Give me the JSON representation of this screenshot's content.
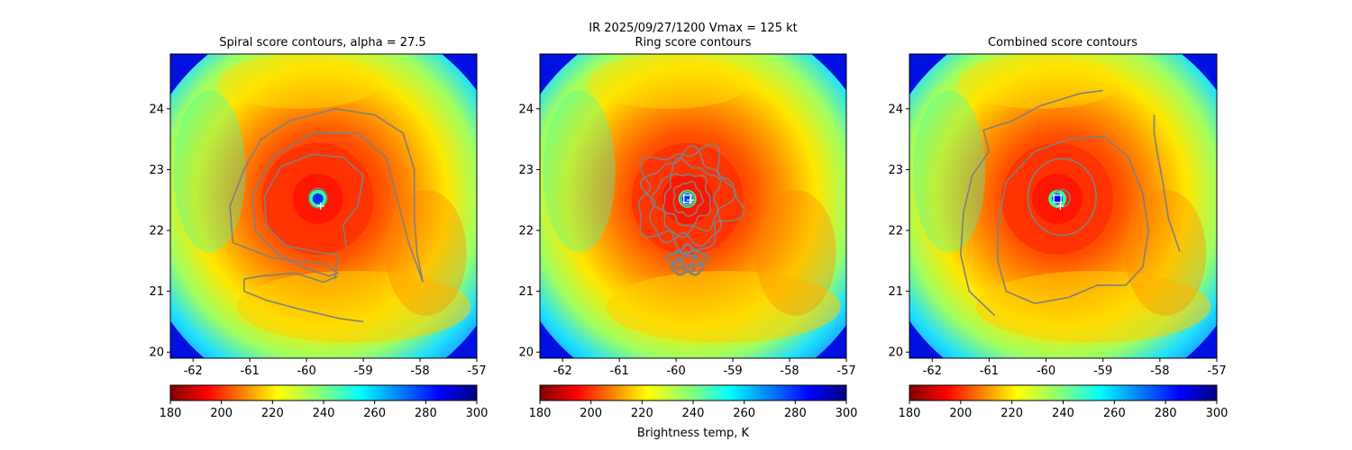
{
  "suptitle": "IR  2025/09/27/1200    Vmax = 125 kt",
  "colors": {
    "contour": "#808080",
    "marker": "#ffffff",
    "center_box": "#0000ff"
  },
  "colorbar_label": "Brightness temp, K",
  "chart_data": [
    {
      "type": "heatmap",
      "title": "Spiral score contours, alpha = 27.5",
      "xlim": [
        -62.4,
        -57.0
      ],
      "ylim": [
        19.9,
        24.9
      ],
      "xticks": [
        "-62",
        "-61",
        "-60",
        "-59",
        "-58",
        "-57"
      ],
      "yticks": [
        "20",
        "21",
        "22",
        "23",
        "24"
      ],
      "colormap": "jet_r",
      "colorbar": {
        "min": 180,
        "max": 300,
        "ticks": [
          "180",
          "200",
          "220",
          "240",
          "260",
          "280",
          "300"
        ]
      },
      "eye_center": [
        -59.8,
        22.52
      ],
      "best_track_marker": [
        -59.75,
        22.4
      ],
      "contours": "spiral"
    },
    {
      "type": "heatmap",
      "title": "Ring score contours",
      "xlim": [
        -62.4,
        -57.0
      ],
      "ylim": [
        19.9,
        24.9
      ],
      "xticks": [
        "-62",
        "-61",
        "-60",
        "-59",
        "-58",
        "-57"
      ],
      "yticks": [
        "20",
        "21",
        "22",
        "23",
        "24"
      ],
      "colormap": "jet",
      "colorbar": {
        "min": 180,
        "max": 300,
        "ticks": [
          "180",
          "200",
          "220",
          "240",
          "260",
          "280",
          "300"
        ]
      },
      "eye_center": [
        -59.8,
        22.52
      ],
      "best_track_marker": [
        -59.75,
        22.5
      ],
      "contours": "ring"
    },
    {
      "type": "heatmap",
      "title": "Combined score contours",
      "xlim": [
        -62.4,
        -57.0
      ],
      "ylim": [
        19.9,
        24.9
      ],
      "xticks": [
        "-62",
        "-61",
        "-60",
        "-59",
        "-58",
        "-57"
      ],
      "yticks": [
        "20",
        "21",
        "22",
        "23",
        "24"
      ],
      "colormap": "jet_r",
      "colorbar": {
        "min": 180,
        "max": 300,
        "ticks": [
          "180",
          "200",
          "220",
          "240",
          "260",
          "280",
          "300"
        ]
      },
      "eye_center": [
        -59.8,
        22.52
      ],
      "best_track_marker": [
        -59.75,
        22.4
      ],
      "contours": "combined"
    }
  ]
}
